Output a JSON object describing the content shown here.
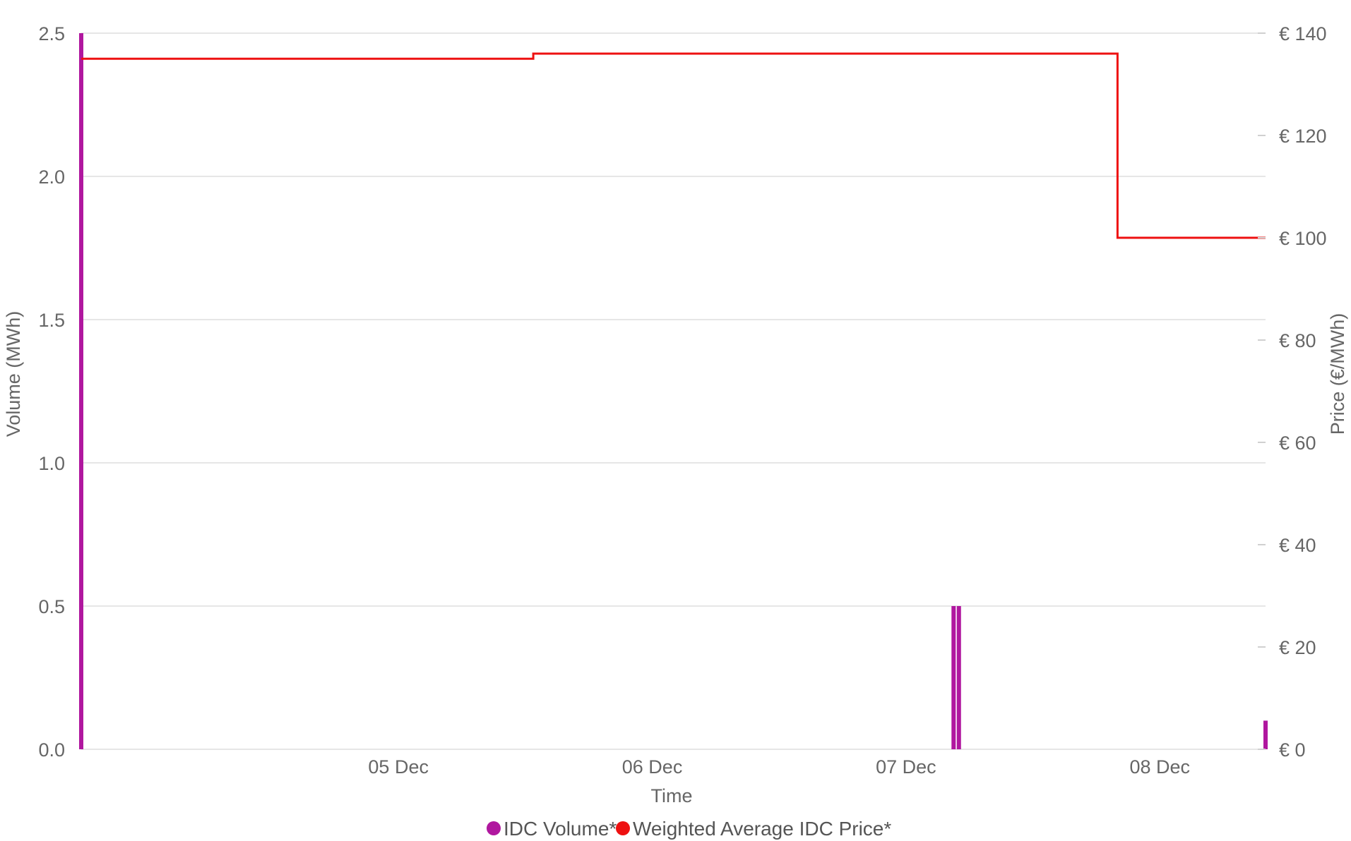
{
  "chart_data": {
    "type": "bar",
    "x_axis": {
      "title": "Time",
      "ticks": [
        "05 Dec",
        "06 Dec",
        "07 Dec",
        "08 Dec"
      ]
    },
    "y_axis_left": {
      "title": "Volume (MWh)",
      "ticks": [
        "0.0",
        "0.5",
        "1.0",
        "1.5",
        "2.0",
        "2.5"
      ],
      "range": [
        0,
        2.5
      ]
    },
    "y_axis_right": {
      "title": "Price (€/MWh)",
      "ticks": [
        "€ 0",
        "€ 20",
        "€ 40",
        "€ 60",
        "€ 80",
        "€ 100",
        "€ 120",
        "€ 140"
      ],
      "range": [
        0,
        140
      ]
    },
    "x_range_days": [
      "04 Dec 06:00",
      "08 Dec 22:00"
    ],
    "series": [
      {
        "name": "IDC Volume*",
        "type": "bar",
        "axis": "left",
        "color": "#b0179f",
        "points": [
          {
            "t": "04 Dec 06:00",
            "y": 2.5
          },
          {
            "t": "07 Dec 16:30",
            "y": 0.5
          },
          {
            "t": "07 Dec 17:00",
            "y": 0.5
          },
          {
            "t": "08 Dec 22:00",
            "y": 0.1
          }
        ]
      },
      {
        "name": "Weighted Average IDC Price*",
        "type": "step-line",
        "axis": "right",
        "color": "#ee1111",
        "points": [
          {
            "t": "04 Dec 06:00",
            "y": 135
          },
          {
            "t": "06 Dec 00:45",
            "y": 135
          },
          {
            "t": "06 Dec 00:45",
            "y": 136
          },
          {
            "t": "08 Dec 08:00",
            "y": 136
          },
          {
            "t": "08 Dec 08:00",
            "y": 100
          },
          {
            "t": "08 Dec 22:00",
            "y": 100
          }
        ]
      }
    ],
    "legend": {
      "position": "bottom-center",
      "items": [
        {
          "label": "IDC Volume*",
          "color": "#b0179f"
        },
        {
          "label": "Weighted Average IDC Price*",
          "color": "#ee1111"
        }
      ]
    },
    "grid": true
  }
}
